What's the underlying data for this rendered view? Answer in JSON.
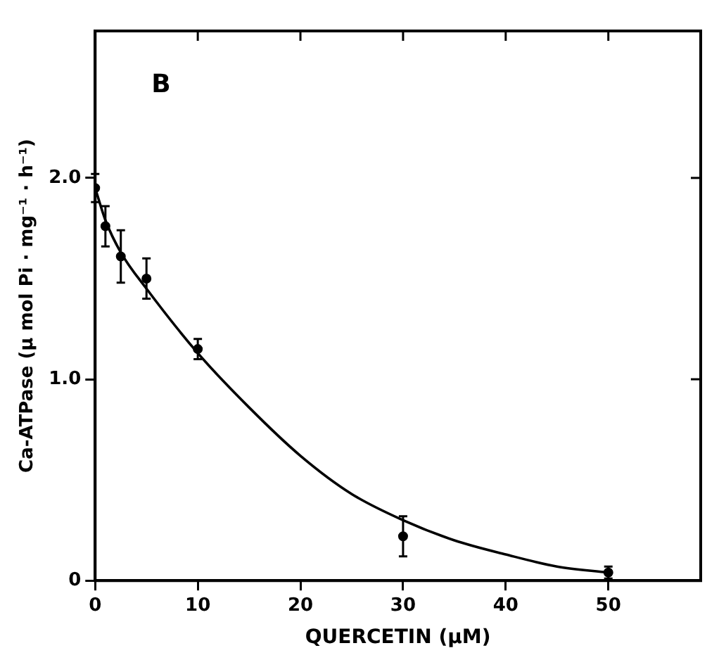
{
  "chart_data": {
    "type": "scatter",
    "xlabel": "QUERCETIN (μM)",
    "ylabel": "Ca-ATPase (μ mol Pi · mg⁻¹ · h⁻¹)",
    "annotations": [
      "B"
    ],
    "xlim": [
      0,
      59
    ],
    "ylim": [
      0,
      2.73
    ],
    "xticks": [
      0,
      10,
      20,
      30,
      40,
      50
    ],
    "yticks": [
      {
        "value": 0,
        "label": "0"
      },
      {
        "value": 1,
        "label": "1.0"
      },
      {
        "value": 2,
        "label": "2.0"
      }
    ],
    "grid": false,
    "legend": false,
    "marker": "circle",
    "series": [
      {
        "color": "#000000",
        "x": [
          0,
          1,
          2.5,
          5,
          10,
          30,
          50
        ],
        "values": [
          1.95,
          1.76,
          1.61,
          1.5,
          1.15,
          0.22,
          0.04
        ],
        "errors": [
          0.07,
          0.1,
          0.13,
          0.1,
          0.05,
          0.1,
          0.03
        ]
      },
      {
        "type": "line",
        "color": "#000000",
        "marker": "none",
        "line_style": "solid",
        "x": [
          0,
          1,
          2.5,
          5,
          10,
          15,
          20,
          25,
          30,
          35,
          40,
          45,
          50
        ],
        "values": [
          1.95,
          1.79,
          1.63,
          1.45,
          1.13,
          0.86,
          0.62,
          0.43,
          0.3,
          0.2,
          0.13,
          0.07,
          0.04
        ]
      }
    ]
  }
}
